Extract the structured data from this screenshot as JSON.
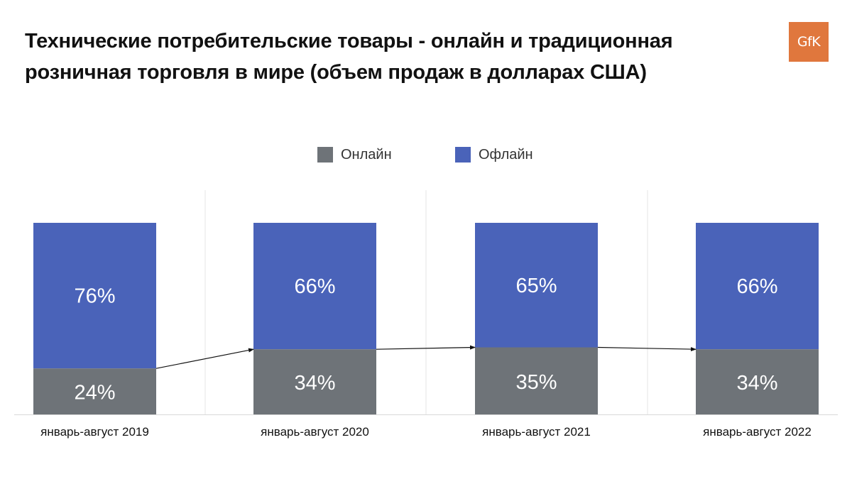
{
  "title": "Технические потребительские товары - онлайн и традиционная розничная торговля в мире (объем продаж в долларах США)",
  "logo": {
    "text": "GfK",
    "color": "#e0773d"
  },
  "legend": [
    {
      "label": "Онлайн",
      "color": "#6e7378"
    },
    {
      "label": "Офлайн",
      "color": "#4a63b9"
    }
  ],
  "chart_data": {
    "type": "bar",
    "stacked": true,
    "categories": [
      "январь-август 2019",
      "январь-август 2020",
      "январь-август 2021",
      "январь-август 2022"
    ],
    "series": [
      {
        "name": "Онлайн",
        "values": [
          24,
          34,
          35,
          34
        ],
        "labels": [
          "24%",
          "34%",
          "35%",
          "34%"
        ],
        "color": "#6e7378"
      },
      {
        "name": "Офлайн",
        "values": [
          76,
          66,
          65,
          66
        ],
        "labels": [
          "76%",
          "66%",
          "65%",
          "66%"
        ],
        "color": "#4a63b9"
      }
    ],
    "ylim": [
      0,
      100
    ],
    "unit": "%",
    "grid": false,
    "legend_position": "top",
    "annotations": "arrows connecting online share across years"
  }
}
